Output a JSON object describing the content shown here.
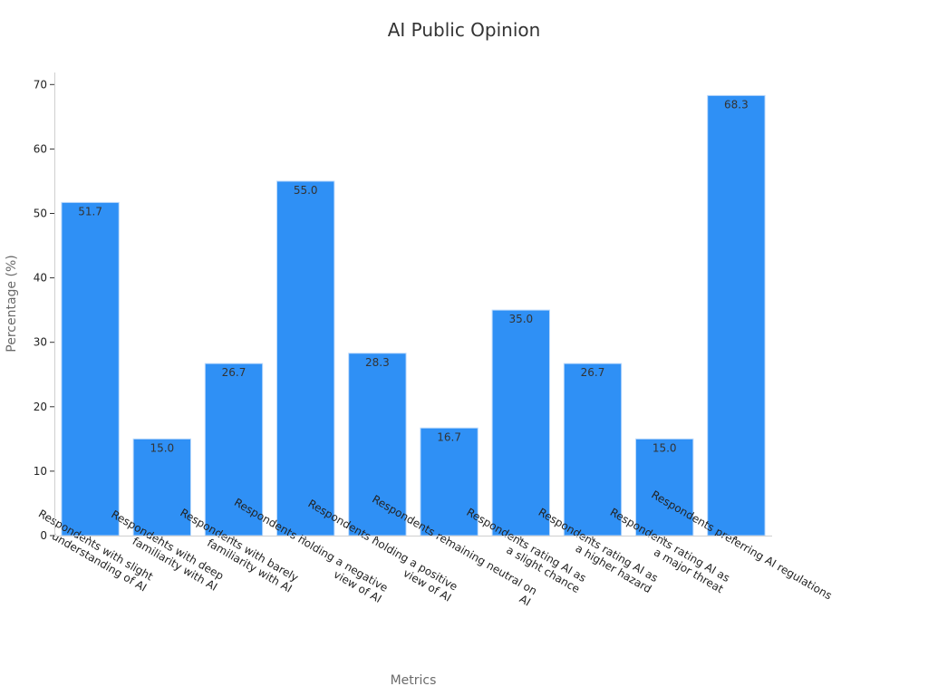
{
  "chart_data": {
    "type": "bar",
    "title": "AI Public Opinion",
    "xlabel": "Metrics",
    "ylabel": "Percentage (%)",
    "ylim": [
      0,
      72
    ],
    "yticks": [
      0,
      10,
      20,
      30,
      40,
      50,
      60,
      70
    ],
    "grid": false,
    "bar_color": "#2f90f5",
    "categories": [
      [
        "Respondents with slight",
        "understanding of AI"
      ],
      [
        "Respondents with deep",
        "familiarity with AI"
      ],
      [
        "Respondents with barely",
        "familiarity with AI"
      ],
      [
        "Respondents holding a negative",
        "view of AI"
      ],
      [
        "Respondents holding  a positive",
        "view of AI"
      ],
      [
        "Respondents remaining neutral on",
        "AI"
      ],
      [
        "Respondents rating AI as",
        "a slight chance"
      ],
      [
        "Respondents rating AI as",
        "a higher hazard"
      ],
      [
        "Respondents rating AI as",
        "a major threat"
      ],
      [
        "Respondents preferring AI regulations"
      ]
    ],
    "values": [
      51.7,
      15.0,
      26.7,
      55.0,
      28.3,
      16.7,
      35.0,
      26.7,
      15.0,
      68.3
    ],
    "value_labels": [
      "51.7",
      "15.0",
      "26.7",
      "55.0",
      "28.3",
      "16.7",
      "35.0",
      "26.7",
      "15.0",
      "68.3"
    ]
  }
}
